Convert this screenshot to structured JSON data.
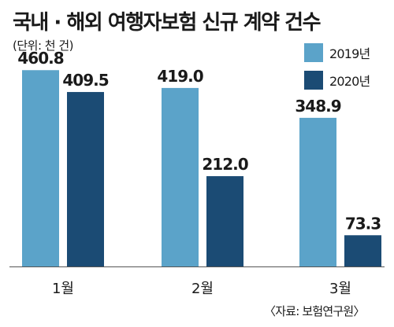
{
  "title": "국내 · 해외 여행자보험 신규 계약 건수",
  "unit": "(단위: 천 건)",
  "source": "〈자료: 보험연구원〉",
  "colors": {
    "series_2019": "#5ba3c9",
    "series_2020": "#1b4b74",
    "axis": "#555555",
    "text": "#1a1a1a"
  },
  "chart_data": {
    "type": "bar",
    "categories": [
      "1월",
      "2월",
      "3월"
    ],
    "series": [
      {
        "name": "2019년",
        "values": [
          460.8,
          419.0,
          348.9
        ]
      },
      {
        "name": "2020년",
        "values": [
          409.5,
          212.0,
          73.3
        ]
      }
    ],
    "value_labels": [
      [
        "460.8",
        "419.0",
        "348.9"
      ],
      [
        "409.5",
        "212.0",
        "73.3"
      ]
    ],
    "ylim": [
      0,
      500
    ],
    "grid": false,
    "legend": "top-right"
  }
}
